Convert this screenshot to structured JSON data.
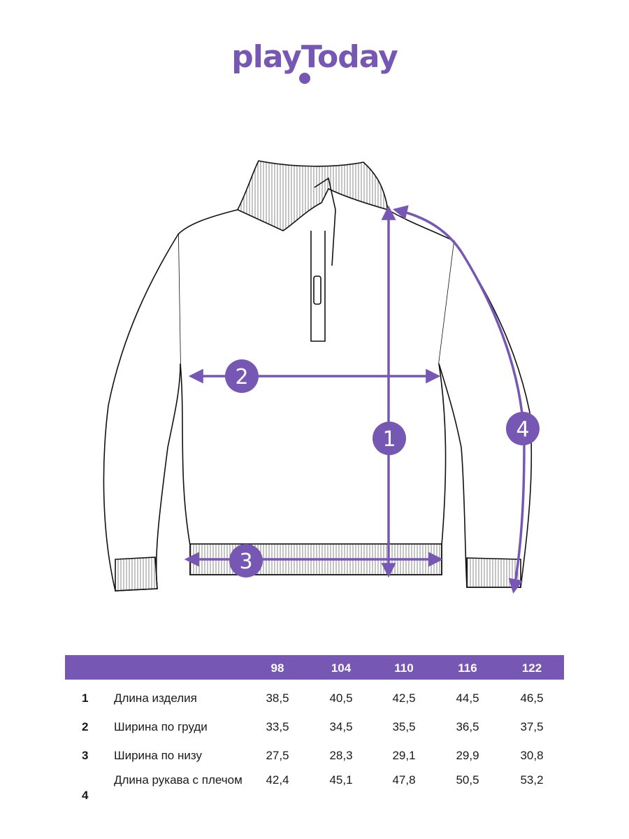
{
  "brand": {
    "logo_text": "playToday",
    "color": "#7757b4"
  },
  "diagram": {
    "markers": [
      "1",
      "2",
      "3",
      "4"
    ]
  },
  "table": {
    "sizes": [
      "98",
      "104",
      "110",
      "116",
      "122"
    ],
    "rows": [
      {
        "num": "1",
        "label": "Длина изделия",
        "values": [
          "38,5",
          "40,5",
          "42,5",
          "44,5",
          "46,5"
        ]
      },
      {
        "num": "2",
        "label": "Ширина по груди",
        "values": [
          "33,5",
          "34,5",
          "35,5",
          "36,5",
          "37,5"
        ]
      },
      {
        "num": "3",
        "label": "Ширина по низу",
        "values": [
          "27,5",
          "28,3",
          "29,1",
          "29,9",
          "30,8"
        ]
      },
      {
        "num": "4",
        "label": "Длина рукава с плечом",
        "values": [
          "42,4",
          "45,1",
          "47,8",
          "50,5",
          "53,2"
        ]
      }
    ]
  }
}
